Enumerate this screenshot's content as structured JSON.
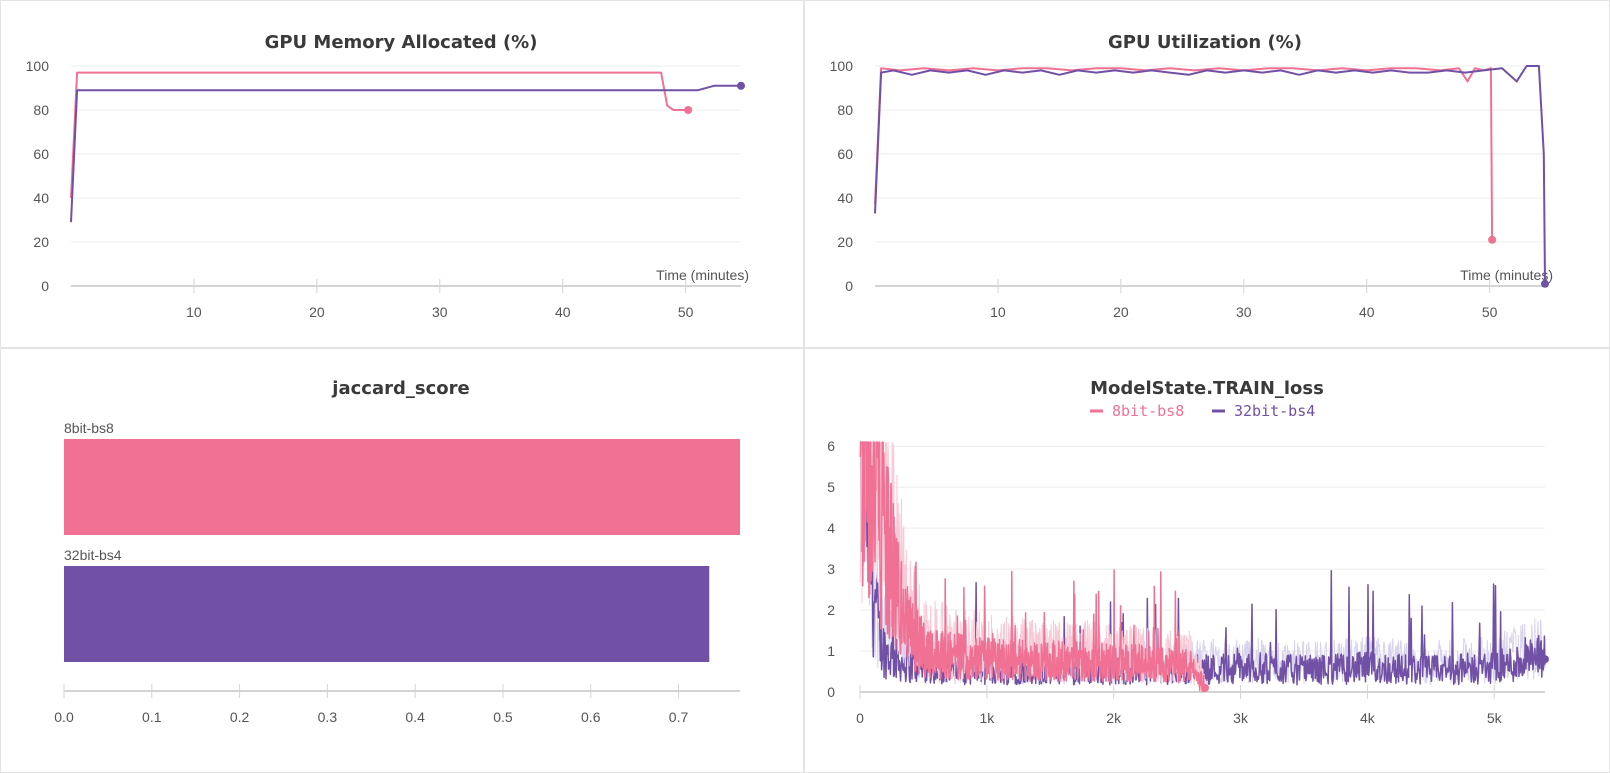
{
  "colors": {
    "pink": "#f07193",
    "purple": "#7151a6",
    "pink_faint": "#f8c9d6",
    "purple_faint": "#d9d2ec"
  },
  "chart_data": [
    {
      "id": "mem",
      "type": "line",
      "title": "GPU Memory Allocated (%)",
      "xlabel": "Time (minutes)",
      "ylabel": "",
      "xlim": [
        0,
        54.5
      ],
      "ylim": [
        0,
        100
      ],
      "xticks": [
        10,
        20,
        30,
        40,
        50
      ],
      "yticks": [
        0,
        20,
        40,
        60,
        80,
        100
      ],
      "series": [
        {
          "key": "pink",
          "x": [
            0,
            0.5,
            48,
            48.5,
            49,
            50.2
          ],
          "y": [
            40,
            97,
            97,
            82,
            80,
            80
          ]
        },
        {
          "key": "purple",
          "x": [
            0,
            0.5,
            51,
            52.3,
            54.5
          ],
          "y": [
            29,
            89,
            89,
            91,
            91
          ]
        }
      ]
    },
    {
      "id": "util",
      "type": "line",
      "title": "GPU Utilization (%)",
      "xlabel": "Time (minutes)",
      "ylabel": "",
      "xlim": [
        0,
        54.5
      ],
      "ylim": [
        0,
        100
      ],
      "xticks": [
        10,
        20,
        30,
        40,
        50
      ],
      "yticks": [
        0,
        20,
        40,
        60,
        80,
        100
      ],
      "series": [
        {
          "key": "pink",
          "x": [
            0,
            0.5,
            2,
            4,
            6,
            8,
            10,
            12,
            14,
            16,
            18,
            20,
            22,
            24,
            26,
            28,
            30,
            32,
            34,
            36,
            38,
            40,
            42,
            44,
            46,
            47.5,
            48.2,
            48.8,
            49.5,
            50.1,
            50.2
          ],
          "y": [
            37,
            99,
            98,
            99,
            98,
            99,
            98,
            99,
            99,
            98,
            99,
            99,
            98,
            99,
            98,
            99,
            98,
            99,
            99,
            98,
            99,
            98,
            99,
            99,
            98,
            99,
            93,
            99,
            98,
            99,
            21
          ]
        },
        {
          "key": "purple",
          "x": [
            0,
            0.5,
            1.5,
            3,
            4.5,
            6,
            7.5,
            9,
            10.5,
            12,
            13.5,
            15,
            16.5,
            18,
            19.5,
            21,
            22.5,
            24,
            25.5,
            27,
            28.5,
            30,
            31.5,
            33,
            34.5,
            36,
            37.5,
            39,
            40.5,
            42,
            43.5,
            45,
            46.5,
            48,
            49.5,
            51,
            52.2,
            53,
            54,
            54.4,
            54.5
          ],
          "y": [
            33,
            97,
            98,
            96,
            98,
            97,
            98,
            96,
            98,
            97,
            98,
            96,
            98,
            97,
            98,
            97,
            98,
            97,
            96,
            98,
            97,
            98,
            97,
            98,
            96,
            98,
            97,
            98,
            97,
            98,
            97,
            97,
            98,
            97,
            98,
            99,
            93,
            100,
            100,
            60,
            1
          ]
        }
      ]
    },
    {
      "id": "jaccard",
      "type": "bar",
      "title": "jaccard_score",
      "categories": [
        "8bit-bs8",
        "32bit-bs4"
      ],
      "values": [
        0.77,
        0.735
      ],
      "xlim": [
        0,
        0.77
      ],
      "xticks": [
        0.0,
        0.1,
        0.2,
        0.3,
        0.4,
        0.5,
        0.6,
        0.7
      ],
      "xtick_labels": [
        "0.0",
        "0.1",
        "0.2",
        "0.3",
        "0.4",
        "0.5",
        "0.6",
        "0.7"
      ]
    },
    {
      "id": "loss",
      "type": "line",
      "title": "ModelState.TRAIN_loss",
      "xlabel": "",
      "ylabel": "",
      "xlim": [
        0,
        5400
      ],
      "ylim": [
        0,
        6.2
      ],
      "xticks": [
        0,
        1000,
        2000,
        3000,
        4000,
        5000
      ],
      "xtick_labels": [
        "0",
        "1k",
        "2k",
        "3k",
        "4k",
        "5k"
      ],
      "yticks": [
        0,
        1,
        2,
        3,
        4,
        5,
        6
      ],
      "legend": [
        {
          "name": "8bit-bs8",
          "key": "pink"
        },
        {
          "name": "32bit-bs4",
          "key": "purple"
        }
      ],
      "series": [
        {
          "name": "8bit-bs8",
          "key": "pink",
          "x": [
            0,
            50,
            100,
            150,
            200,
            250,
            300,
            350,
            400,
            500,
            600,
            700,
            800,
            900,
            1000,
            1200,
            1400,
            1600,
            1800,
            2000,
            2200,
            2400,
            2600,
            2720
          ],
          "y": [
            6,
            6.1,
            5.4,
            4.6,
            3.6,
            2.8,
            2.2,
            1.6,
            1.3,
            1.0,
            0.9,
            0.85,
            0.8,
            0.8,
            0.75,
            0.75,
            0.7,
            0.7,
            0.7,
            0.65,
            0.65,
            0.6,
            0.6,
            0.1
          ]
        },
        {
          "name": "32bit-bs4",
          "key": "purple",
          "x": [
            0,
            50,
            100,
            150,
            200,
            300,
            400,
            600,
            800,
            1000,
            1500,
            2000,
            2500,
            3000,
            3500,
            4000,
            4500,
            5000,
            5400
          ],
          "y": [
            6,
            4.6,
            2.5,
            1.3,
            0.9,
            0.7,
            0.6,
            0.55,
            0.5,
            0.5,
            0.5,
            0.5,
            0.5,
            0.55,
            0.5,
            0.55,
            0.5,
            0.55,
            0.8
          ]
        }
      ]
    }
  ]
}
